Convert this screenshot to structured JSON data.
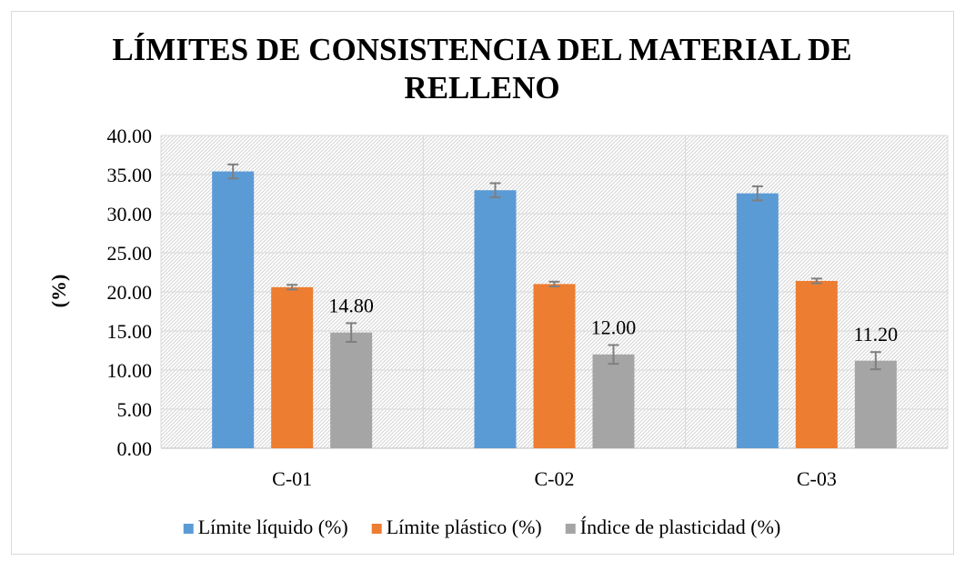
{
  "chart_data": {
    "type": "bar",
    "title_line1": "LÍMITES DE CONSISTENCIA DEL MATERIAL DE",
    "title_line2": "RELLENO",
    "xlabel": "",
    "ylabel": "(%)",
    "ylim": [
      0,
      40
    ],
    "yticks": [
      "0.00",
      "5.00",
      "10.00",
      "15.00",
      "20.00",
      "25.00",
      "30.00",
      "35.00",
      "40.00"
    ],
    "categories": [
      "C-01",
      "C-02",
      "C-03"
    ],
    "series": [
      {
        "name": "Límite líquido (%)",
        "color": "#5b9bd5",
        "values": [
          35.4,
          33.0,
          32.6
        ],
        "errors": [
          0.9,
          0.9,
          0.9
        ]
      },
      {
        "name": "Límite plástico (%)",
        "color": "#ed7d31",
        "values": [
          20.6,
          21.0,
          21.4
        ],
        "errors": [
          0.3,
          0.3,
          0.3
        ]
      },
      {
        "name": "Índice de plasticidad (%)",
        "color": "#a5a5a5",
        "values": [
          14.8,
          12.0,
          11.2
        ],
        "errors": [
          1.2,
          1.2,
          1.1
        ],
        "labels": [
          "14.80",
          "12.00",
          "11.20"
        ]
      }
    ],
    "grid": true,
    "plot_background": "hatched",
    "legend_position": "bottom"
  }
}
